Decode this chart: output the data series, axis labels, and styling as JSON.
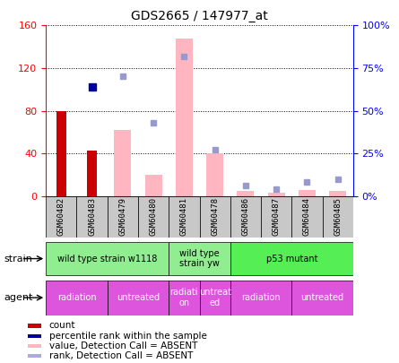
{
  "title": "GDS2665 / 147977_at",
  "samples": [
    "GSM60482",
    "GSM60483",
    "GSM60479",
    "GSM60480",
    "GSM60481",
    "GSM60478",
    "GSM60486",
    "GSM60487",
    "GSM60484",
    "GSM60485"
  ],
  "count_values": [
    80,
    43,
    null,
    null,
    null,
    null,
    null,
    null,
    null,
    null
  ],
  "percentile_values": [
    null,
    64,
    null,
    null,
    null,
    null,
    null,
    null,
    null,
    null
  ],
  "absent_bar_values": [
    null,
    null,
    62,
    20,
    148,
    40,
    5,
    3,
    6,
    5
  ],
  "absent_rank_values": [
    null,
    null,
    70,
    43,
    82,
    27,
    6,
    4,
    8,
    10
  ],
  "ylim_left": [
    0,
    160
  ],
  "ylim_right": [
    0,
    100
  ],
  "yticks_left": [
    0,
    40,
    80,
    120,
    160
  ],
  "yticks_right": [
    0,
    25,
    50,
    75,
    100
  ],
  "yticklabels_right": [
    "0%",
    "25%",
    "50%",
    "75%",
    "100%"
  ],
  "strain_groups": [
    {
      "label": "wild type strain w1118",
      "cols": [
        0,
        1,
        2,
        3
      ],
      "color": "#90EE90"
    },
    {
      "label": "wild type\nstrain yw",
      "cols": [
        4,
        5
      ],
      "color": "#90EE90"
    },
    {
      "label": "p53 mutant",
      "cols": [
        6,
        7,
        8,
        9
      ],
      "color": "#55EE55"
    }
  ],
  "agent_groups": [
    {
      "label": "radiation",
      "cols": [
        0,
        1
      ],
      "color": "#DD55DD"
    },
    {
      "label": "untreated",
      "cols": [
        2,
        3
      ],
      "color": "#DD55DD"
    },
    {
      "label": "radiati-\non",
      "cols": [
        4
      ],
      "color": "#DD55DD"
    },
    {
      "label": "untreat-\ned",
      "cols": [
        5
      ],
      "color": "#DD55DD"
    },
    {
      "label": "radiation",
      "cols": [
        6,
        7
      ],
      "color": "#DD55DD"
    },
    {
      "label": "untreated",
      "cols": [
        8,
        9
      ],
      "color": "#DD55DD"
    }
  ],
  "legend_items": [
    {
      "label": "count",
      "color": "#CC0000"
    },
    {
      "label": "percentile rank within the sample",
      "color": "#000099"
    },
    {
      "label": "value, Detection Call = ABSENT",
      "color": "#FFB6C1"
    },
    {
      "label": "rank, Detection Call = ABSENT",
      "color": "#AAAADD"
    }
  ],
  "bar_color_count": "#CC0000",
  "bar_color_absent_value": "#FFB6C1",
  "dot_color_percentile": "#000099",
  "dot_color_absent_rank": "#9999CC",
  "sample_box_color": "#C8C8C8",
  "spine_left_color": "red",
  "spine_right_color": "blue",
  "grid_style": ":",
  "grid_color": "black",
  "title_fontsize": 10
}
